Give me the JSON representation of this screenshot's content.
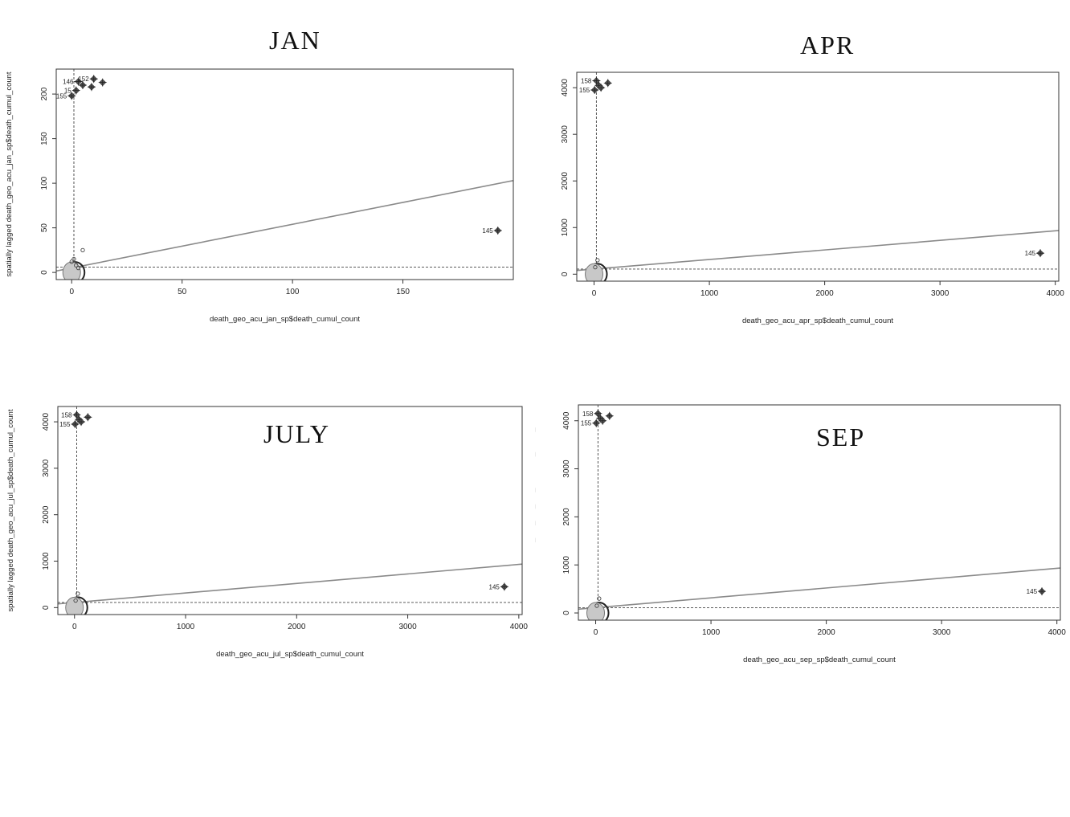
{
  "chart_data": [
    {
      "type": "scatter",
      "title": "JAN",
      "xlabel": "death_geo_acu_jan_sp$death_cumul_count",
      "ylabel": "spatially lagged death_geo_acu_jan_sp$death_cumul_count",
      "xlim": [
        -7,
        200
      ],
      "ylim": [
        -8,
        228
      ],
      "xticks": [
        "0",
        "50",
        "100",
        "150"
      ],
      "xtick_values": [
        0,
        50,
        100,
        150
      ],
      "yticks": [
        "0",
        "50",
        "100",
        "150",
        "200"
      ],
      "ytick_values": [
        0,
        50,
        100,
        150,
        200
      ],
      "x_mean": 1.0,
      "y_mean": 6.0,
      "regression": {
        "intercept": 5,
        "slope": 0.49
      },
      "cluster": {
        "x": 0,
        "y": 0
      },
      "points": [
        [
          0,
          12
        ],
        [
          1,
          15
        ],
        [
          5,
          25
        ],
        [
          2,
          8
        ],
        [
          3,
          5
        ]
      ],
      "influential": [
        {
          "label": "146",
          "x": 3,
          "y": 214
        },
        {
          "label": "155",
          "x": 0,
          "y": 198
        },
        {
          "label": "15",
          "x": 2,
          "y": 204
        },
        {
          "label": "152",
          "x": 10,
          "y": 217
        },
        {
          "label": "",
          "x": 5,
          "y": 210
        },
        {
          "label": "",
          "x": 14,
          "y": 213
        },
        {
          "label": "",
          "x": 9,
          "y": 208
        },
        {
          "label": "145",
          "x": 193,
          "y": 47
        }
      ]
    },
    {
      "type": "scatter",
      "title": "APR",
      "xlabel": "death_geo_acu_apr_sp$death_cumul_count",
      "ylabel": "spatially lagged death_geo_acu_apr_sp$death_cumul_count",
      "xlim": [
        -150,
        4030
      ],
      "ylim": [
        -150,
        4330
      ],
      "xticks": [
        "0",
        "1000",
        "2000",
        "3000",
        "4000"
      ],
      "xtick_values": [
        0,
        1000,
        2000,
        3000,
        4000
      ],
      "yticks": [
        "0",
        "1000",
        "2000",
        "3000",
        "4000"
      ],
      "ytick_values": [
        0,
        1000,
        2000,
        3000,
        4000
      ],
      "x_mean": 20,
      "y_mean": 110,
      "regression": {
        "intercept": 110,
        "slope": 0.205
      },
      "cluster": {
        "x": 0,
        "y": 0
      },
      "points": [
        [
          30,
          300
        ],
        [
          10,
          150
        ]
      ],
      "influential": [
        {
          "label": "158",
          "x": 20,
          "y": 4150
        },
        {
          "label": "155",
          "x": 5,
          "y": 3950
        },
        {
          "label": "",
          "x": 40,
          "y": 4050
        },
        {
          "label": "",
          "x": 60,
          "y": 4000
        },
        {
          "label": "",
          "x": 120,
          "y": 4100
        },
        {
          "label": "145",
          "x": 3870,
          "y": 450
        }
      ]
    },
    {
      "type": "scatter",
      "title": "JULY",
      "xlabel": "death_geo_acu_jul_sp$death_cumul_count",
      "ylabel": "spatially lagged death_geo_acu_jul_sp$death_cumul_count",
      "xlim": [
        -150,
        4030
      ],
      "ylim": [
        -150,
        4330
      ],
      "xticks": [
        "0",
        "1000",
        "2000",
        "3000",
        "4000"
      ],
      "xtick_values": [
        0,
        1000,
        2000,
        3000,
        4000
      ],
      "yticks": [
        "0",
        "1000",
        "2000",
        "3000",
        "4000"
      ],
      "ytick_values": [
        0,
        1000,
        2000,
        3000,
        4000
      ],
      "x_mean": 20,
      "y_mean": 110,
      "regression": {
        "intercept": 110,
        "slope": 0.205
      },
      "cluster": {
        "x": 0,
        "y": 0
      },
      "points": [
        [
          30,
          300
        ],
        [
          10,
          150
        ]
      ],
      "influential": [
        {
          "label": "158",
          "x": 20,
          "y": 4150
        },
        {
          "label": "155",
          "x": 5,
          "y": 3950
        },
        {
          "label": "",
          "x": 40,
          "y": 4050
        },
        {
          "label": "",
          "x": 60,
          "y": 4000
        },
        {
          "label": "",
          "x": 120,
          "y": 4100
        },
        {
          "label": "145",
          "x": 3870,
          "y": 450
        }
      ]
    },
    {
      "type": "scatter",
      "title": "SEP",
      "xlabel": "death_geo_acu_sep_sp$death_cumul_count",
      "ylabel": "spatially lagged death_geo_acu_sep_sp$death_cumul_count",
      "xlim": [
        -150,
        4030
      ],
      "ylim": [
        -150,
        4330
      ],
      "xticks": [
        "0",
        "1000",
        "2000",
        "3000",
        "4000"
      ],
      "xtick_values": [
        0,
        1000,
        2000,
        3000,
        4000
      ],
      "yticks": [
        "0",
        "1000",
        "2000",
        "3000",
        "4000"
      ],
      "ytick_values": [
        0,
        1000,
        2000,
        3000,
        4000
      ],
      "x_mean": 20,
      "y_mean": 110,
      "regression": {
        "intercept": 110,
        "slope": 0.205
      },
      "cluster": {
        "x": 0,
        "y": 0
      },
      "points": [
        [
          30,
          300
        ],
        [
          10,
          150
        ]
      ],
      "influential": [
        {
          "label": "158",
          "x": 20,
          "y": 4150
        },
        {
          "label": "155",
          "x": 5,
          "y": 3950
        },
        {
          "label": "",
          "x": 40,
          "y": 4050
        },
        {
          "label": "",
          "x": 60,
          "y": 4000
        },
        {
          "label": "",
          "x": 120,
          "y": 4100
        },
        {
          "label": "145",
          "x": 3870,
          "y": 450
        }
      ]
    }
  ],
  "colors": {
    "axis": "#333333",
    "regression_line": "#8a8a8a",
    "reference_line": "#444444",
    "cluster_fill": "#c8c8c8",
    "marker": "#555555",
    "text": "#222222"
  }
}
